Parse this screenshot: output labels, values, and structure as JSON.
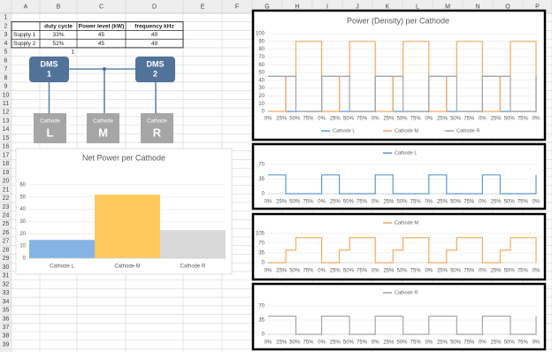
{
  "spreadsheet": {
    "columns": [
      "A",
      "B",
      "C",
      "D",
      "E",
      "F",
      "G",
      "H",
      "I",
      "J",
      "K",
      "L",
      "M",
      "N",
      "O",
      "P"
    ],
    "rows": [
      1,
      2,
      3,
      4,
      5,
      6,
      7,
      8,
      9,
      10,
      11,
      12,
      13,
      14,
      15,
      16,
      17,
      18,
      19,
      20,
      21,
      22,
      23,
      24,
      25,
      26,
      27,
      28,
      29,
      30,
      31,
      32,
      33,
      34,
      35,
      36,
      37,
      38,
      39
    ]
  },
  "table": {
    "header": [
      "duty cycle",
      "Power level (kW)",
      "frequency kHz"
    ],
    "rows": [
      [
        "Supply 1",
        "33%",
        "45",
        "49"
      ],
      [
        "Supply 2",
        "52%",
        "45",
        "49"
      ]
    ]
  },
  "note_cell": "1",
  "diagram": {
    "controllers": [
      {
        "name": "DMS",
        "number": "1"
      },
      {
        "name": "DMS",
        "number": "2"
      }
    ],
    "cathodes": [
      {
        "caption": "Cathode",
        "letter": "L"
      },
      {
        "caption": "Cathode",
        "letter": "M"
      },
      {
        "caption": "Cathode",
        "letter": "R"
      }
    ]
  },
  "chart_data": [
    {
      "type": "bar",
      "title": "Net Power per Cathode",
      "categories": [
        "Cathode L",
        "Cathode M",
        "Cathode R"
      ],
      "values": [
        15,
        52,
        23
      ],
      "colors": [
        "#85b3e3",
        "#ffca5c",
        "#d9d9d9"
      ],
      "ylim": [
        0,
        60
      ],
      "yticks": [
        0,
        10,
        20,
        30,
        40,
        50,
        60
      ],
      "grid": true
    },
    {
      "type": "line",
      "title": "Power (Density) per Cathode",
      "x": [
        0,
        33,
        33,
        52,
        52,
        100,
        100,
        133,
        133,
        152,
        152,
        200,
        200,
        233,
        233,
        252,
        252,
        300,
        300,
        333,
        333,
        352,
        352,
        400,
        400,
        433,
        433,
        452,
        452,
        500,
        500
      ],
      "series": [
        {
          "name": "Cathode L",
          "color": "#5b9bd5",
          "values": [
            45,
            45,
            0,
            0,
            0,
            0,
            45,
            45,
            0,
            0,
            0,
            0,
            45,
            45,
            0,
            0,
            0,
            0,
            45,
            45,
            0,
            0,
            0,
            0,
            45,
            45,
            0,
            0,
            0,
            0,
            45
          ]
        },
        {
          "name": "Cathode M",
          "color": "#f7a95c",
          "values": [
            0,
            0,
            45,
            45,
            90,
            90,
            0,
            0,
            45,
            45,
            90,
            90,
            0,
            0,
            45,
            45,
            90,
            90,
            0,
            0,
            45,
            45,
            90,
            90,
            0,
            0,
            45,
            45,
            90,
            90,
            0
          ]
        },
        {
          "name": "Cathode R",
          "color": "#a5a5a5",
          "values": [
            45,
            45,
            45,
            45,
            0,
            0,
            45,
            45,
            45,
            45,
            0,
            0,
            45,
            45,
            45,
            45,
            0,
            0,
            45,
            45,
            45,
            45,
            0,
            0,
            45,
            45,
            45,
            45,
            0,
            0,
            45
          ]
        }
      ],
      "xlim": [
        0,
        500
      ],
      "xticks": [
        {
          "value": 0,
          "label": "0%"
        },
        {
          "value": 25,
          "label": "25%"
        },
        {
          "value": 50,
          "label": "50%"
        },
        {
          "value": 75,
          "label": "75%"
        },
        {
          "value": 100,
          "label": "0%"
        },
        {
          "value": 125,
          "label": "25%"
        },
        {
          "value": 150,
          "label": "50%"
        },
        {
          "value": 175,
          "label": "75%"
        },
        {
          "value": 200,
          "label": "0%"
        },
        {
          "value": 225,
          "label": "25%"
        },
        {
          "value": 250,
          "label": "50%"
        },
        {
          "value": 275,
          "label": "75%"
        },
        {
          "value": 300,
          "label": "0%"
        },
        {
          "value": 325,
          "label": "25%"
        },
        {
          "value": 350,
          "label": "50%"
        },
        {
          "value": 375,
          "label": "75%"
        },
        {
          "value": 400,
          "label": "0%"
        },
        {
          "value": 425,
          "label": "25%"
        },
        {
          "value": 450,
          "label": "50%"
        },
        {
          "value": 475,
          "label": "75%"
        },
        {
          "value": 500,
          "label": "0%"
        }
      ],
      "ylim": [
        0,
        100
      ],
      "yticks": [
        0,
        10,
        20,
        30,
        40,
        50,
        60,
        70,
        80,
        90,
        100
      ],
      "grid": true,
      "legend": "bottom"
    },
    {
      "type": "line",
      "x": [
        0,
        33,
        33,
        52,
        52,
        100,
        100,
        133,
        133,
        152,
        152,
        200,
        200,
        233,
        233,
        252,
        252,
        300,
        300,
        333,
        333,
        352,
        352,
        400,
        400,
        433,
        433,
        452,
        452,
        500,
        500
      ],
      "series": [
        {
          "name": "Cathode L",
          "color": "#5b9bd5",
          "values": [
            45,
            45,
            0,
            0,
            0,
            0,
            45,
            45,
            0,
            0,
            0,
            0,
            45,
            45,
            0,
            0,
            0,
            0,
            45,
            45,
            0,
            0,
            0,
            0,
            45,
            45,
            0,
            0,
            0,
            0,
            45
          ]
        }
      ],
      "xlim": [
        0,
        500
      ],
      "xticks": [
        {
          "value": 0,
          "label": "0%"
        },
        {
          "value": 25,
          "label": "25%"
        },
        {
          "value": 50,
          "label": "50%"
        },
        {
          "value": 75,
          "label": "75%"
        },
        {
          "value": 100,
          "label": "0%"
        },
        {
          "value": 125,
          "label": "25%"
        },
        {
          "value": 150,
          "label": "50%"
        },
        {
          "value": 175,
          "label": "75%"
        },
        {
          "value": 200,
          "label": "0%"
        },
        {
          "value": 225,
          "label": "25%"
        },
        {
          "value": 250,
          "label": "50%"
        },
        {
          "value": 275,
          "label": "75%"
        },
        {
          "value": 300,
          "label": "0%"
        },
        {
          "value": 325,
          "label": "25%"
        },
        {
          "value": 350,
          "label": "50%"
        },
        {
          "value": 375,
          "label": "75%"
        },
        {
          "value": 400,
          "label": "0%"
        },
        {
          "value": 425,
          "label": "25%"
        },
        {
          "value": 450,
          "label": "50%"
        },
        {
          "value": 475,
          "label": "75%"
        },
        {
          "value": 500,
          "label": "0%"
        }
      ],
      "ylim": [
        0,
        70
      ],
      "yticks": [
        0,
        35,
        70
      ],
      "grid": true,
      "legend": "top"
    },
    {
      "type": "line",
      "x": [
        0,
        33,
        33,
        52,
        52,
        100,
        100,
        133,
        133,
        152,
        152,
        200,
        200,
        233,
        233,
        252,
        252,
        300,
        300,
        333,
        333,
        352,
        352,
        400,
        400,
        433,
        433,
        452,
        452,
        500,
        500
      ],
      "series": [
        {
          "name": "Cathode M",
          "color": "#f7a95c",
          "values": [
            0,
            0,
            45,
            45,
            90,
            90,
            0,
            0,
            45,
            45,
            90,
            90,
            0,
            0,
            45,
            45,
            90,
            90,
            0,
            0,
            45,
            45,
            90,
            90,
            0,
            0,
            45,
            45,
            90,
            90,
            0
          ]
        }
      ],
      "xlim": [
        0,
        500
      ],
      "xticks": [
        {
          "value": 0,
          "label": "0%"
        },
        {
          "value": 25,
          "label": "25%"
        },
        {
          "value": 50,
          "label": "50%"
        },
        {
          "value": 75,
          "label": "75%"
        },
        {
          "value": 100,
          "label": "0%"
        },
        {
          "value": 125,
          "label": "25%"
        },
        {
          "value": 150,
          "label": "50%"
        },
        {
          "value": 175,
          "label": "75%"
        },
        {
          "value": 200,
          "label": "0%"
        },
        {
          "value": 225,
          "label": "25%"
        },
        {
          "value": 250,
          "label": "50%"
        },
        {
          "value": 275,
          "label": "75%"
        },
        {
          "value": 300,
          "label": "0%"
        },
        {
          "value": 325,
          "label": "25%"
        },
        {
          "value": 350,
          "label": "50%"
        },
        {
          "value": 375,
          "label": "75%"
        },
        {
          "value": 400,
          "label": "0%"
        },
        {
          "value": 425,
          "label": "25%"
        },
        {
          "value": 450,
          "label": "50%"
        },
        {
          "value": 475,
          "label": "75%"
        },
        {
          "value": 500,
          "label": "0%"
        }
      ],
      "ylim": [
        0,
        105
      ],
      "yticks": [
        0,
        35,
        70,
        105
      ],
      "grid": true,
      "legend": "top"
    },
    {
      "type": "line",
      "x": [
        0,
        33,
        33,
        52,
        52,
        100,
        100,
        133,
        133,
        152,
        152,
        200,
        200,
        233,
        233,
        252,
        252,
        300,
        300,
        333,
        333,
        352,
        352,
        400,
        400,
        433,
        433,
        452,
        452,
        500,
        500
      ],
      "series": [
        {
          "name": "Cathode R",
          "color": "#a5a5a5",
          "values": [
            45,
            45,
            45,
            45,
            0,
            0,
            45,
            45,
            45,
            45,
            0,
            0,
            45,
            45,
            45,
            45,
            0,
            0,
            45,
            45,
            45,
            45,
            0,
            0,
            45,
            45,
            45,
            45,
            0,
            0,
            45
          ]
        }
      ],
      "xlim": [
        0,
        500
      ],
      "xticks": [
        {
          "value": 0,
          "label": "0%"
        },
        {
          "value": 25,
          "label": "25%"
        },
        {
          "value": 50,
          "label": "50%"
        },
        {
          "value": 75,
          "label": "75%"
        },
        {
          "value": 100,
          "label": "0%"
        },
        {
          "value": 125,
          "label": "25%"
        },
        {
          "value": 150,
          "label": "50%"
        },
        {
          "value": 175,
          "label": "75%"
        },
        {
          "value": 200,
          "label": "0%"
        },
        {
          "value": 225,
          "label": "25%"
        },
        {
          "value": 250,
          "label": "50%"
        },
        {
          "value": 275,
          "label": "75%"
        },
        {
          "value": 300,
          "label": "0%"
        },
        {
          "value": 325,
          "label": "25%"
        },
        {
          "value": 350,
          "label": "50%"
        },
        {
          "value": 375,
          "label": "75%"
        },
        {
          "value": 400,
          "label": "0%"
        },
        {
          "value": 425,
          "label": "25%"
        },
        {
          "value": 450,
          "label": "50%"
        },
        {
          "value": 475,
          "label": "75%"
        },
        {
          "value": 500,
          "label": "0%"
        }
      ],
      "ylim": [
        0,
        70
      ],
      "yticks": [
        0,
        35,
        70
      ],
      "grid": true,
      "legend": "top"
    }
  ]
}
